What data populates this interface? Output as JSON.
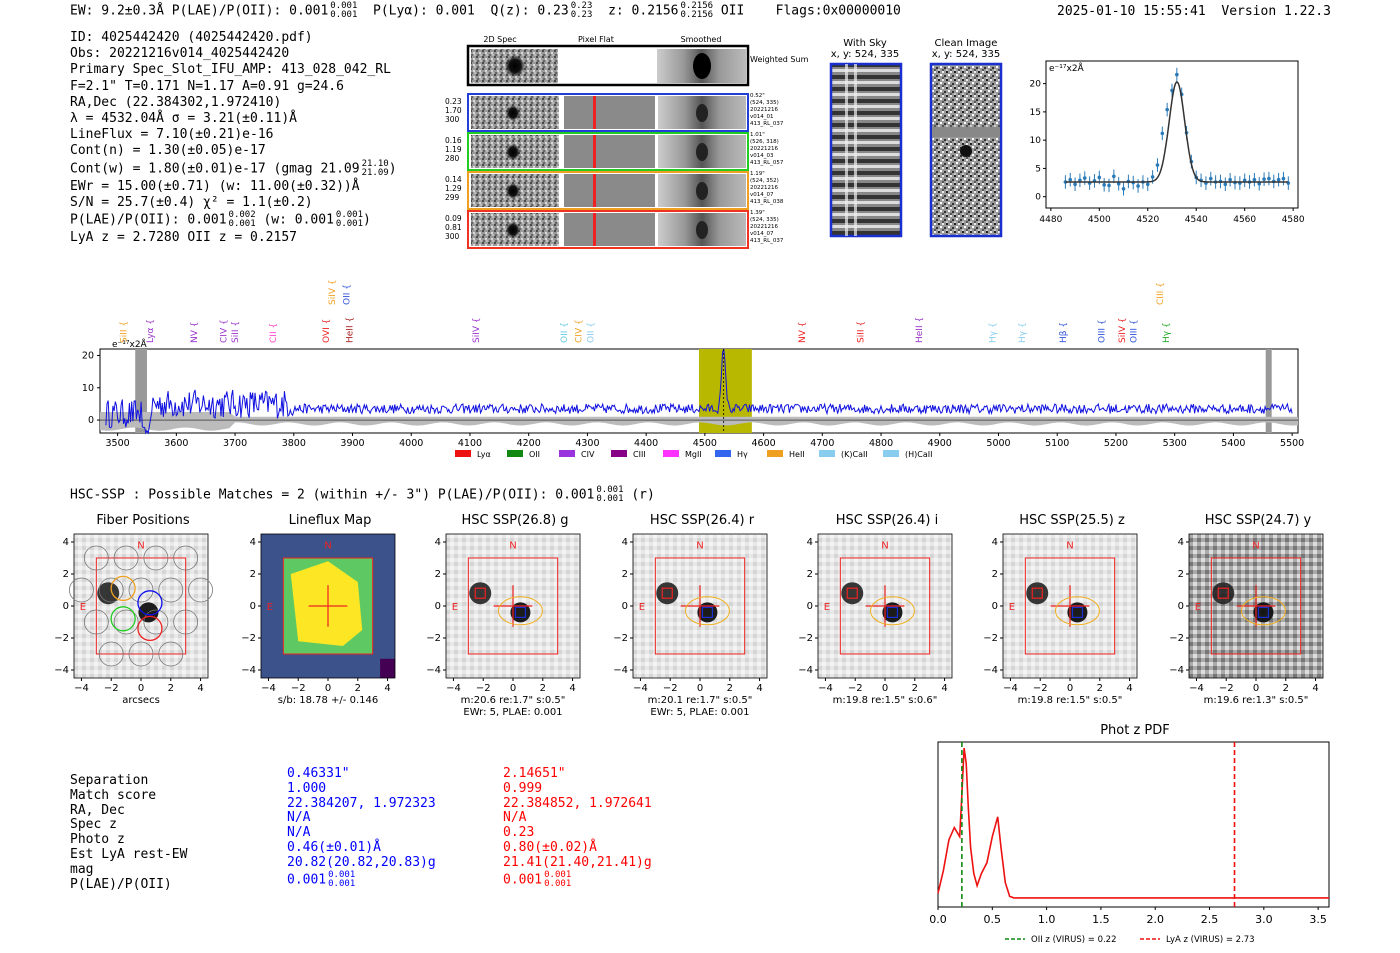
{
  "header": {
    "left": "EW: 9.2±0.3Å  P(LAE)/P(OII): 0.001",
    "pl_sup": "0.001",
    "pl_sub": "0.001",
    "plya": "P(Lyα): 0.001",
    "qz": "Q(z): 0.23",
    "qz_sup": "0.23",
    "qz_sub": "0.23",
    "z": "z: 0.2156",
    "z_sup": "0.2156",
    "z_sub": "0.2156",
    "z_tail": "OII",
    "flags": "Flags:0x00000010",
    "datetime": "2025-01-10 15:55:41",
    "version": "Version 1.22.3"
  },
  "info": {
    "lines": [
      "ID: 4025442420 (4025442420.pdf)",
      "Obs: 20221216v014_4025442420",
      "Primary Spec_Slot_IFU_AMP: 413_028_042_RL",
      "F=2.1\"  T=0.171  N=1.17  A=0.91  g=24.6",
      "RA,Dec (22.384302,1.972410)",
      "λ = 4532.04Å  σ = 3.21(±0.11)Å",
      "LineFlux = 7.10(±0.21)e-16",
      "Cont(n) = 1.30(±0.05)e-17"
    ],
    "contw": "Cont(w) = 1.80(±0.01)e-17 (gmag 21.09",
    "contw_sup": "21.10",
    "contw_sub": "21.09",
    "lines2": [
      "EWr = 15.00(±0.71) (w: 11.00(±0.32))Å",
      "S/N = 25.7(±0.4)  χ² = 1.1(±0.2)"
    ],
    "plae": "P(LAE)/P(OII): 0.001",
    "plae_sup": "0.002",
    "plae_sub": "0.001",
    "plae_w": "(w: 0.001",
    "plae_w_sup": "0.001",
    "plae_w_sub": "0.001",
    "lyaz": "LyA z = 2.7280   OII z = 0.2157"
  },
  "cutouts": {
    "col_titles": [
      "2D Spec",
      "Pixel Flat",
      "Smoothed"
    ],
    "weighted_sum": "Weighted Sum",
    "rows": [
      {
        "left": [
          "0.23",
          "1.70",
          "300"
        ],
        "right": [
          "0.52\"",
          "(524, 335)",
          "20221216",
          "v014_01",
          "413_RL_037"
        ],
        "color": "#1f3fd6"
      },
      {
        "left": [
          "0.16",
          "1.19",
          "280"
        ],
        "right": [
          "1.01\"",
          "(526, 318)",
          "20221216",
          "v014_03",
          "413_RL_057"
        ],
        "color": "#22cc22"
      },
      {
        "left": [
          "0.14",
          "1.29",
          "299"
        ],
        "right": [
          "1.19\"",
          "(524, 352)",
          "20221216",
          "v014_07",
          "413_RL_038"
        ],
        "color": "#f0a020"
      },
      {
        "left": [
          "0.09",
          "0.81",
          "300"
        ],
        "right": [
          "1.39\"",
          "(524, 335)",
          "20221216",
          "v014_07",
          "413_RL_037"
        ],
        "color": "#ee3322"
      }
    ]
  },
  "sky": {
    "title": "With Sky",
    "coords": "x, y: 524, 335"
  },
  "clean": {
    "title": "Clean Image",
    "coords": "x, y: 524, 335"
  },
  "zoom_chart": {
    "type": "scatter",
    "ylabel": "e⁻¹⁷x2Å",
    "xlim": [
      4478,
      4582
    ],
    "ylim": [
      -2,
      24
    ],
    "xticks": [
      4480,
      4500,
      4520,
      4540,
      4560,
      4580
    ],
    "yticks": [
      0,
      5,
      10,
      15,
      20
    ],
    "points": [
      [
        4486,
        2.6
      ],
      [
        4488,
        3.0
      ],
      [
        4490,
        2.2
      ],
      [
        4492,
        2.9
      ],
      [
        4494,
        3.3
      ],
      [
        4496,
        2.4
      ],
      [
        4498,
        2.8
      ],
      [
        4500,
        3.4
      ],
      [
        4502,
        2.1
      ],
      [
        4504,
        2.0
      ],
      [
        4506,
        3.6
      ],
      [
        4508,
        2.3
      ],
      [
        4510,
        1.4
      ],
      [
        4512,
        2.7
      ],
      [
        4514,
        2.5
      ],
      [
        4516,
        1.9
      ],
      [
        4518,
        2.6
      ],
      [
        4520,
        2.2
      ],
      [
        4522,
        3.5
      ],
      [
        4524,
        5.6
      ],
      [
        4526,
        11.2
      ],
      [
        4528,
        15.4
      ],
      [
        4530,
        18.8
      ],
      [
        4532,
        21.6
      ],
      [
        4534,
        18.1
      ],
      [
        4536,
        11.3
      ],
      [
        4538,
        6.2
      ],
      [
        4540,
        3.4
      ],
      [
        4542,
        2.9
      ],
      [
        4544,
        2.4
      ],
      [
        4546,
        3.2
      ],
      [
        4548,
        2.6
      ],
      [
        4550,
        2.7
      ],
      [
        4552,
        2.2
      ],
      [
        4554,
        3.0
      ],
      [
        4556,
        2.5
      ],
      [
        4558,
        2.4
      ],
      [
        4560,
        2.9
      ],
      [
        4562,
        2.6
      ],
      [
        4564,
        3.0
      ],
      [
        4566,
        2.3
      ],
      [
        4568,
        3.1
      ],
      [
        4570,
        3.2
      ],
      [
        4572,
        2.7
      ],
      [
        4574,
        3.0
      ],
      [
        4576,
        3.2
      ],
      [
        4578,
        2.4
      ]
    ],
    "fit": {
      "center": 4532.04,
      "sigma": 3.21,
      "baseline": 2.6,
      "peak": 20.3
    }
  },
  "full_spectrum": {
    "type": "line",
    "ylabel": "e⁻¹⁷x2Å",
    "xlim": [
      3470,
      5510
    ],
    "ylim": [
      -4,
      22
    ],
    "xticks": [
      3500,
      3600,
      3700,
      3800,
      3900,
      4000,
      4100,
      4200,
      4300,
      4400,
      4500,
      4600,
      4700,
      4800,
      4900,
      5000,
      5100,
      5200,
      5300,
      5400,
      5500
    ],
    "yticks": [
      0,
      10,
      20
    ],
    "highlight": [
      4490,
      4580
    ],
    "masked": [
      [
        3530,
        3550
      ],
      [
        5455,
        5465
      ]
    ],
    "line_markers": [
      {
        "label": "SiII",
        "wave": 3510,
        "color": "#f0a020",
        "row": 0
      },
      {
        "label": "Lyα",
        "wave": 3555,
        "color": "#9933cc",
        "row": 0
      },
      {
        "label": "NV",
        "wave": 3630,
        "color": "#9933cc",
        "row": 0
      },
      {
        "label": "CIV",
        "wave": 3680,
        "color": "#9933cc",
        "row": 0
      },
      {
        "label": "SiII",
        "wave": 3700,
        "color": "#9933cc",
        "row": 0
      },
      {
        "label": "CII",
        "wave": 3765,
        "color": "#ff44cc",
        "row": 0
      },
      {
        "label": "OVI",
        "wave": 3855,
        "color": "#ee2222",
        "row": 0
      },
      {
        "label": "HeII",
        "wave": 3895,
        "color": "#aa2222",
        "row": 0
      },
      {
        "label": "SiIV",
        "wave": 3865,
        "color": "#f0a020",
        "row": 1
      },
      {
        "label": "OII",
        "wave": 3890,
        "color": "#3355dd",
        "row": 1
      },
      {
        "label": "SiIV",
        "wave": 4110,
        "color": "#9933cc",
        "row": 0
      },
      {
        "label": "OII",
        "wave": 4260,
        "color": "#66ccdd",
        "row": 0
      },
      {
        "label": "CIV",
        "wave": 4285,
        "color": "#f0a020",
        "row": 0
      },
      {
        "label": "OII",
        "wave": 4305,
        "color": "#88ccee",
        "row": 0
      },
      {
        "label": "NV",
        "wave": 4665,
        "color": "#ee2222",
        "row": 0
      },
      {
        "label": "SiII",
        "wave": 4765,
        "color": "#ee2222",
        "row": 0
      },
      {
        "label": "HeII",
        "wave": 4865,
        "color": "#9933cc",
        "row": 0
      },
      {
        "label": "Hγ",
        "wave": 4990,
        "color": "#88ccee",
        "row": 0
      },
      {
        "label": "Hγ",
        "wave": 5040,
        "color": "#88ccee",
        "row": 0
      },
      {
        "label": "Hβ",
        "wave": 5110,
        "color": "#3355dd",
        "row": 0
      },
      {
        "label": "OIII",
        "wave": 5175,
        "color": "#3355dd",
        "row": 0
      },
      {
        "label": "SiIV",
        "wave": 5210,
        "color": "#ee2222",
        "row": 0
      },
      {
        "label": "OIII",
        "wave": 5230,
        "color": "#3355dd",
        "row": 0
      },
      {
        "label": "Hγ",
        "wave": 5285,
        "color": "#22aa22",
        "row": 0
      },
      {
        "label": "CIII",
        "wave": 5275,
        "color": "#f0a020",
        "row": 1
      }
    ],
    "legend": [
      {
        "label": "Lyα",
        "color": "#ee1111"
      },
      {
        "label": "OII",
        "color": "#118811"
      },
      {
        "label": "CIV",
        "color": "#9933dd"
      },
      {
        "label": "CIII",
        "color": "#880088"
      },
      {
        "label": "MgII",
        "color": "#ff33ff"
      },
      {
        "label": "Hγ",
        "color": "#3366ee"
      },
      {
        "label": "HeII",
        "color": "#f0a020"
      },
      {
        "label": "(K)CaII",
        "color": "#88ccee"
      },
      {
        "label": "(H)CaII",
        "color": "#88ccee"
      }
    ]
  },
  "hsc": {
    "summary": "HSC-SSP : Possible Matches = 2 (within +/- 3\")  P(LAE)/P(OII): 0.001",
    "summary_sup": "0.001",
    "summary_sub": "0.001",
    "summary_tail": "(r)",
    "ticks": [
      "-4",
      "-2",
      "0",
      "2",
      "4"
    ],
    "north": "N",
    "east": "E",
    "panels": [
      {
        "title": "Fiber Positions",
        "caption1": "arcsecs",
        "caption2": ""
      },
      {
        "title": "Lineflux Map",
        "caption1": "s/b: 18.78 +/- 0.146",
        "caption2": ""
      },
      {
        "title": "HSC SSP(26.8) g",
        "caption1": "m:20.6   re:1.7\"   s:0.5\"",
        "caption2": "EWr: 5, PLAE: 0.001"
      },
      {
        "title": "HSC SSP(26.4) r",
        "caption1": "m:20.1   re:1.7\"   s:0.5\"",
        "caption2": "EWr: 5, PLAE: 0.001"
      },
      {
        "title": "HSC SSP(26.4) i",
        "caption1": "m:19.8   re:1.5\"   s:0.6\"",
        "caption2": ""
      },
      {
        "title": "HSC SSP(25.5) z",
        "caption1": "m:19.8   re:1.5\"   s:0.5\"",
        "caption2": ""
      },
      {
        "title": "HSC SSP(24.7) y",
        "caption1": "m:19.6   re:1.3\"   s:0.5\"",
        "caption2": ""
      }
    ]
  },
  "matches": {
    "labels": [
      "Separation",
      "Match score",
      "RA, Dec",
      "Spec z",
      "Photo z",
      "Est LyA rest-EW",
      "mag",
      "P(LAE)/P(OII)"
    ],
    "col1": [
      "0.46331\"",
      "1.000",
      "22.384207, 1.972323",
      "N/A",
      "N/A",
      "0.46(±0.01)Å",
      "20.82(20.82,20.83)g",
      "0.001"
    ],
    "col1_sup": "0.001",
    "col1_sub": "0.001",
    "col2": [
      "2.14651\"",
      "0.999",
      "22.384852, 1.972641",
      "N/A",
      "0.23",
      "0.80(±0.02)Å",
      "21.41(21.40,21.41)g",
      "0.001"
    ],
    "col2_sup": "0.001",
    "col2_sub": "0.001"
  },
  "photz_chart": {
    "type": "line",
    "title": "Phot z PDF",
    "xlim": [
      0.0,
      3.6
    ],
    "xticks": [
      "0.0",
      "0.5",
      "1.0",
      "1.5",
      "2.0",
      "2.5",
      "3.0",
      "3.5"
    ],
    "x": [
      0.0,
      0.05,
      0.1,
      0.15,
      0.2,
      0.22,
      0.24,
      0.26,
      0.28,
      0.3,
      0.33,
      0.36,
      0.4,
      0.45,
      0.5,
      0.55,
      0.58,
      0.62,
      0.66,
      0.7,
      1.0,
      2.0,
      3.6
    ],
    "y": [
      0.05,
      0.2,
      0.4,
      0.48,
      0.42,
      0.7,
      1.0,
      0.9,
      0.6,
      0.35,
      0.18,
      0.1,
      0.18,
      0.25,
      0.42,
      0.55,
      0.35,
      0.12,
      0.03,
      0.02,
      0.02,
      0.02,
      0.02
    ],
    "vlines": [
      {
        "label": "OII z (VIRUS) = 0.22",
        "x": 0.22,
        "color": "#118811"
      },
      {
        "label": "LyA z (VIRUS) = 2.73",
        "x": 2.73,
        "color": "#ee1111"
      }
    ]
  }
}
